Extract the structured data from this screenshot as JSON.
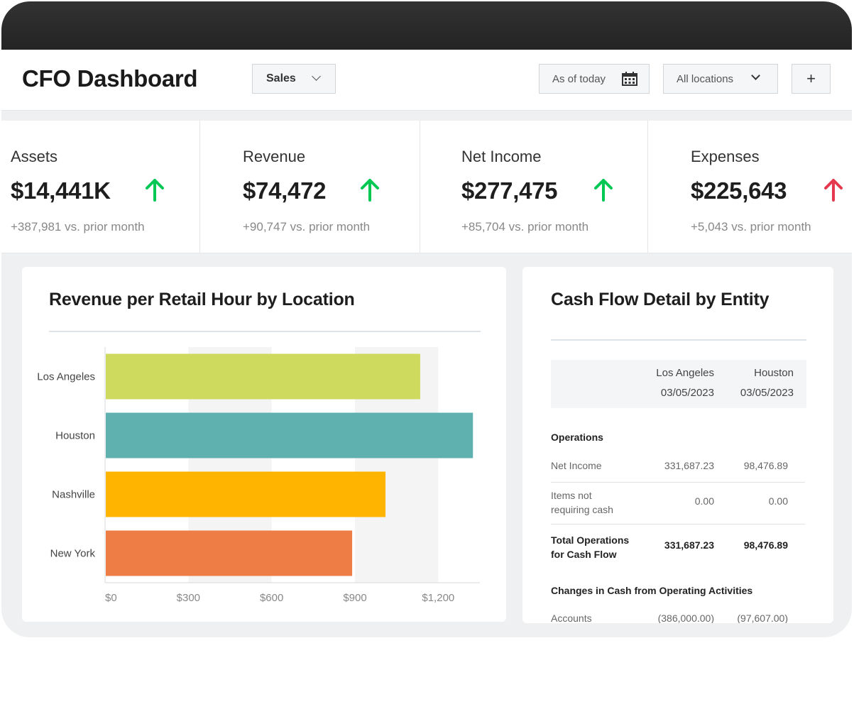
{
  "header": {
    "title": "CFO Dashboard",
    "sales_label": "Sales",
    "date_label": "As of today",
    "locations_label": "All locations",
    "add_label": "+"
  },
  "kpis": [
    {
      "label": "Assets",
      "value": "$14,441K",
      "trend": "up",
      "delta": "+387,981 vs. prior month"
    },
    {
      "label": "Revenue",
      "value": "$74,472",
      "trend": "up",
      "delta": "+90,747 vs. prior month"
    },
    {
      "label": "Net Income",
      "value": "$277,475",
      "trend": "up",
      "delta": "+85,704 vs. prior month"
    },
    {
      "label": "Expenses",
      "value": "$225,643",
      "trend": "up",
      "delta": "+5,043 vs. prior month"
    }
  ],
  "colors": {
    "up_good": "#00c853",
    "up_bad": "#e53950"
  },
  "chart_data": {
    "type": "bar",
    "orientation": "horizontal",
    "title": "Revenue per Retail Hour by Location",
    "categories": [
      "Los Angeles",
      "Houston",
      "Nashville",
      "New York"
    ],
    "values": [
      1135,
      1325,
      1010,
      890
    ],
    "colors": [
      "#cdda5d",
      "#5fb1b0",
      "#ffb400",
      "#ee7d45"
    ],
    "xlim": [
      0,
      1350
    ],
    "xticks": [
      0,
      300,
      600,
      900,
      1200
    ],
    "xtick_labels": [
      "$0",
      "$300",
      "$600",
      "$900",
      "$1,200"
    ],
    "xlabel": "",
    "ylabel": "",
    "grid": "alternating vertical bands"
  },
  "cash_flow": {
    "title": "Cash Flow Detail by Entity",
    "columns": [
      {
        "entity": "Los Angeles",
        "date": "03/05/2023"
      },
      {
        "entity": "Houston",
        "date": "03/05/2023"
      }
    ],
    "sections": [
      {
        "name": "Operations"
      },
      {
        "name": "Changes in Cash from Operating Activities"
      }
    ],
    "rows": [
      {
        "label": "Net Income",
        "values": [
          "331,687.23",
          "98,476.89"
        ]
      },
      {
        "label": "Items not requiring cash",
        "values": [
          "0.00",
          "0.00"
        ]
      },
      {
        "label": "Total Operations for Cash Flow",
        "values": [
          "331,687.23",
          "98,476.89"
        ]
      },
      {
        "label": "Accounts",
        "values": [
          "(386,000.00)",
          "(97,607.00)"
        ]
      }
    ]
  }
}
